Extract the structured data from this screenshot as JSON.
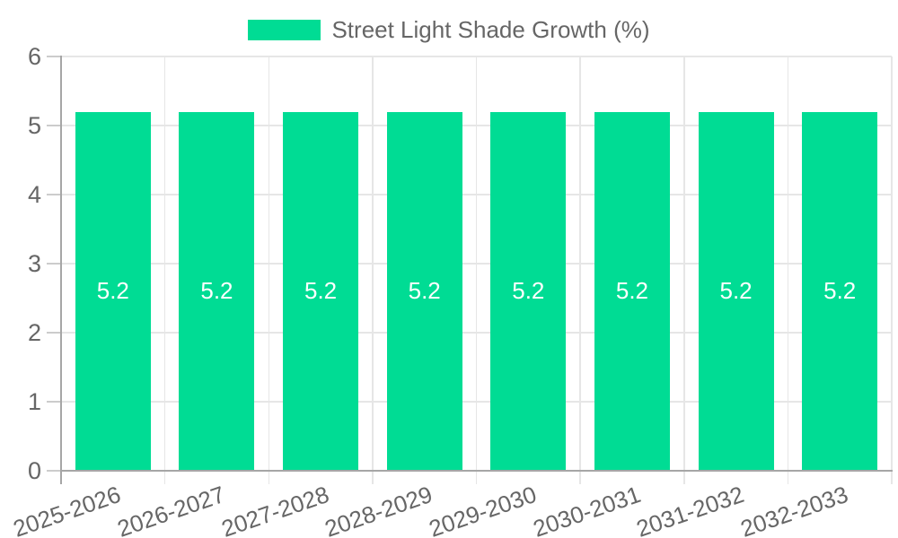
{
  "legend": {
    "label": "Street Light Shade Growth (%)"
  },
  "chart_data": {
    "type": "bar",
    "title": "Street Light Shade Growth (%)",
    "categories": [
      "2025-2026",
      "2026-2027",
      "2027-2028",
      "2028-2029",
      "2029-2030",
      "2030-2031",
      "2031-2032",
      "2032-2033"
    ],
    "values": [
      5.2,
      5.2,
      5.2,
      5.2,
      5.2,
      5.2,
      5.2,
      5.2
    ],
    "bar_value_labels": [
      "5.2",
      "5.2",
      "5.2",
      "5.2",
      "5.2",
      "5.2",
      "5.2",
      "5.2"
    ],
    "series": [
      {
        "name": "Street Light Shade Growth (%)",
        "values": [
          5.2,
          5.2,
          5.2,
          5.2,
          5.2,
          5.2,
          5.2,
          5.2
        ]
      }
    ],
    "xlabel": "",
    "ylabel": "",
    "ylim": [
      0,
      6
    ],
    "yticks": [
      0,
      1,
      2,
      3,
      4,
      5,
      6
    ],
    "ytick_labels": [
      "0",
      "1",
      "2",
      "3",
      "4",
      "5",
      "6"
    ],
    "grid": true,
    "legend_position": "top",
    "colors": {
      "bar": "#00DC94",
      "bar_label": "#FFFFFF",
      "axis_text": "#666666",
      "grid_line": "#E6E6E6",
      "axis_line": "#A6A6A6",
      "tick": "#CCCCCC"
    }
  }
}
